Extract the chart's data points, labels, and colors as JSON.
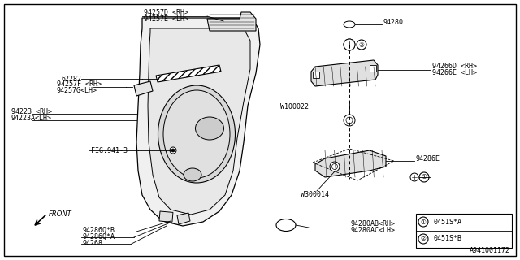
{
  "background_color": "#ffffff",
  "line_color": "#000000",
  "text_color": "#000000",
  "diagram_code": "A941001172",
  "font_size": 6.0,
  "labels": {
    "94257D": "94257D <RH>",
    "94257E": "94257E <LH>",
    "94257F": "94257F <RH>",
    "94257G": "94257G<LH>",
    "62282": "62282",
    "94223": "94223 <RH>",
    "94223A": "94223A<LH>",
    "FIG941": "FIG.941-3",
    "W100022": "W100022",
    "94266D": "94266D <RH>",
    "94266E": "94266E <LH>",
    "94280": "94280",
    "94286E": "94286E",
    "W300014": "W300014",
    "94286QB": "94286Q*B",
    "94286QA": "94286Q*A",
    "94268": "94268",
    "94280AB": "94280AB<RH>",
    "94280AC": "94280AC<LH>",
    "leg1": "0451S*A",
    "leg2": "0451S*B",
    "FRONT": "FRONT"
  }
}
